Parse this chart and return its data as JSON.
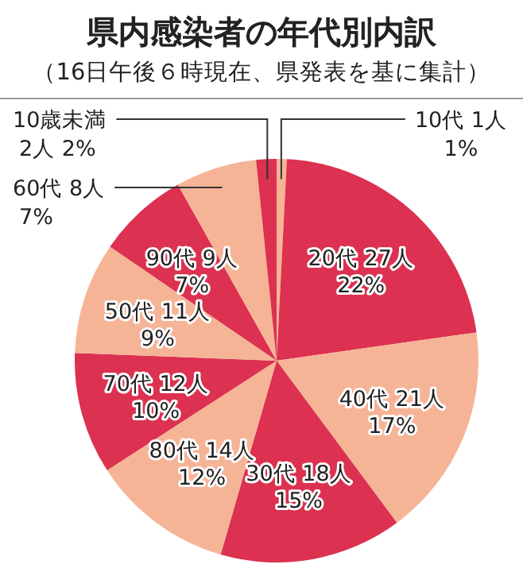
{
  "chart_data": {
    "type": "pie",
    "title": "県内感染者の年代別内訳",
    "subtitle": "（16日午後６時現在、県発表を基に集計）",
    "categories": [
      "10代",
      "20代",
      "40代",
      "30代",
      "80代",
      "70代",
      "50代",
      "90代",
      "60代",
      "10歳未満"
    ],
    "values": [
      1,
      27,
      21,
      18,
      14,
      12,
      11,
      9,
      8,
      2
    ],
    "value_labels": [
      "1人 1%",
      "27人 22%",
      "21人 17%",
      "18人 15%",
      "14人 12%",
      "12人 10%",
      "11人 9%",
      "9人 7%",
      "8人 7%",
      "2人 2%"
    ],
    "colors": [
      "#f6b497",
      "#dc3150",
      "#f6b497",
      "#dc3150",
      "#f6b497",
      "#dc3150",
      "#f6b497",
      "#dc3150",
      "#f6b497",
      "#dc3150"
    ]
  }
}
